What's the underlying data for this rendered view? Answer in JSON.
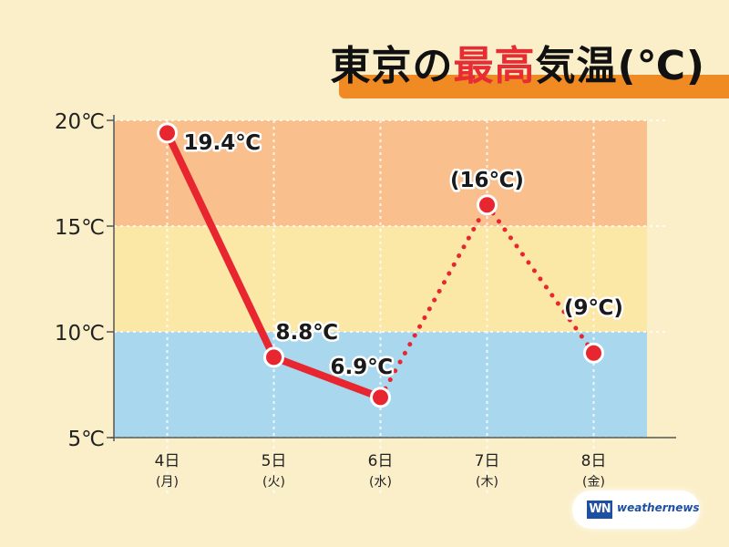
{
  "title": {
    "part1": "東京の",
    "highlight": "最高",
    "part2": "気温",
    "unit": "(℃)"
  },
  "chart_data": {
    "type": "line",
    "title": "東京の最高気温(℃)",
    "categories": [
      {
        "day": "4日",
        "weekday": "(月)"
      },
      {
        "day": "5日",
        "weekday": "(火)"
      },
      {
        "day": "6日",
        "weekday": "(水)"
      },
      {
        "day": "7日",
        "weekday": "(木)"
      },
      {
        "day": "8日",
        "weekday": "(金)"
      }
    ],
    "values": [
      19.4,
      8.8,
      6.9,
      16,
      9
    ],
    "point_labels": [
      "19.4℃",
      "8.8℃",
      "6.9℃",
      "(16℃)",
      "(9℃)"
    ],
    "line_style": [
      "solid",
      "solid",
      "dotted",
      "dotted"
    ],
    "ylim": [
      5,
      20
    ],
    "yticks": [
      5,
      10,
      15,
      20
    ],
    "ytick_labels": [
      "5℃",
      "10℃",
      "15℃",
      "20℃"
    ],
    "bands": [
      {
        "from": 5,
        "to": 10,
        "color": "#a9d8ee"
      },
      {
        "from": 10,
        "to": 15,
        "color": "#fbe7a6"
      },
      {
        "from": 15,
        "to": 20,
        "color": "#f9c08e"
      }
    ],
    "line_color": "#e8262f",
    "grid": true
  },
  "logo": {
    "mark": "WN",
    "text": "weathernews"
  }
}
